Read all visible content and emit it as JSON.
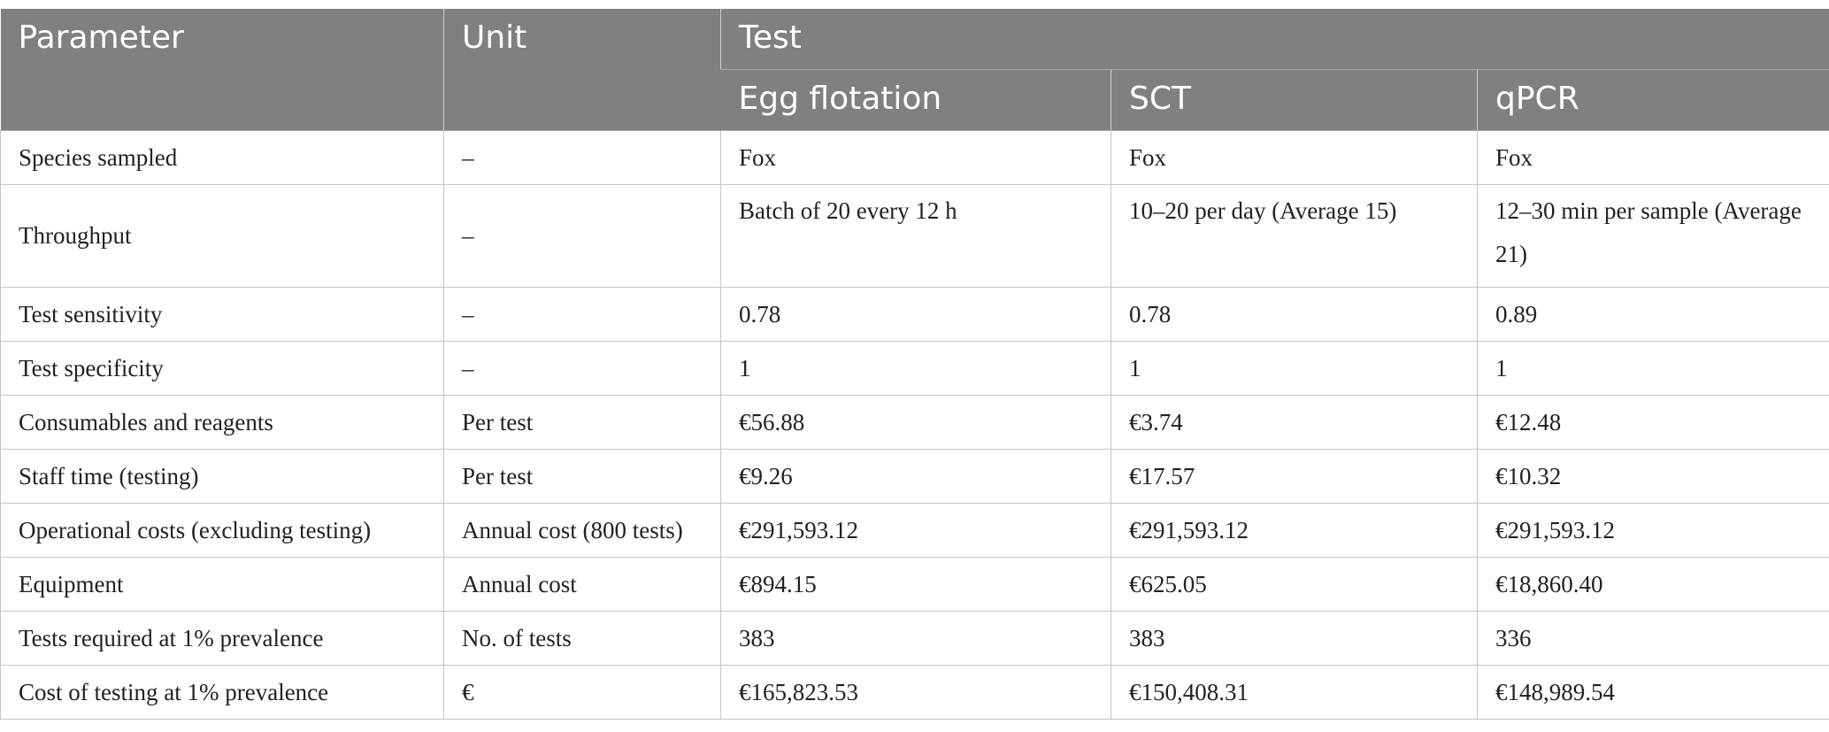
{
  "header": {
    "parameter": "Parameter",
    "unit": "Unit",
    "test": "Test",
    "tests": [
      "Egg flotation",
      "SCT",
      "qPCR"
    ]
  },
  "rows": [
    {
      "parameter": "Species sampled",
      "unit": "–",
      "values": [
        "Fox",
        "Fox",
        "Fox"
      ]
    },
    {
      "parameter": "Throughput",
      "unit": "–",
      "values": [
        "Batch of 20 every 12 h",
        "10–20 per day (Average 15)",
        "12–30 min per sample (Average 21)"
      ]
    },
    {
      "parameter": "Test sensitivity",
      "unit": "–",
      "values": [
        "0.78",
        "0.78",
        "0.89"
      ]
    },
    {
      "parameter": "Test specificity",
      "unit": "–",
      "values": [
        "1",
        "1",
        "1"
      ]
    },
    {
      "parameter": "Consumables and reagents",
      "unit": "Per test",
      "values": [
        "€56.88",
        "€3.74",
        "€12.48"
      ]
    },
    {
      "parameter": "Staff time (testing)",
      "unit": "Per test",
      "values": [
        "€9.26",
        "€17.57",
        "€10.32"
      ]
    },
    {
      "parameter": "Operational costs (excluding testing)",
      "unit": "Annual cost (800 tests)",
      "values": [
        "€291,593.12",
        "€291,593.12",
        "€291,593.12"
      ]
    },
    {
      "parameter": "Equipment",
      "unit": "Annual cost",
      "values": [
        "€894.15",
        "€625.05",
        "€18,860.40"
      ]
    },
    {
      "parameter": "Tests required at 1% prevalence",
      "unit": "No. of tests",
      "values": [
        "383",
        "383",
        "336"
      ]
    },
    {
      "parameter": "Cost of testing at 1% prevalence",
      "unit": "€",
      "values": [
        "€165,823.53",
        "€150,408.31",
        "€148,989.54"
      ]
    }
  ]
}
